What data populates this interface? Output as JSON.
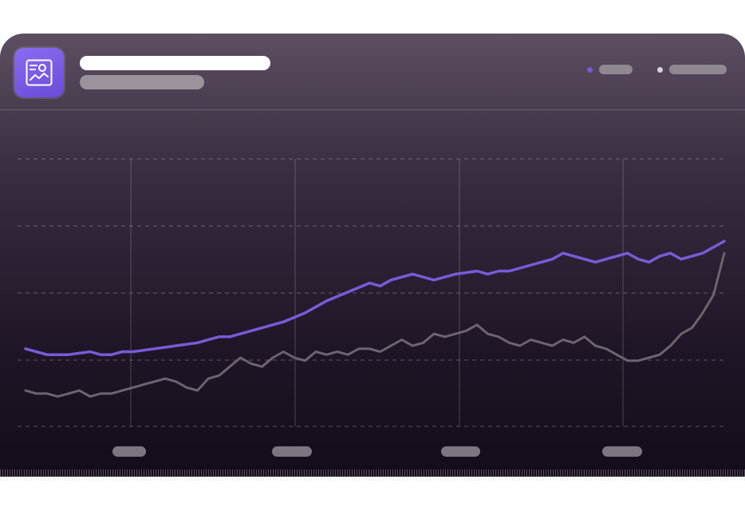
{
  "colors": {
    "series_primary": "#7a5ad8",
    "series_secondary": "#6e6370",
    "accent": "#7a5ad8"
  },
  "icons": {
    "app_icon": "image-chart-icon"
  },
  "chart_data": {
    "type": "line",
    "title": "",
    "xlabel": "",
    "ylabel": "",
    "grid": true,
    "legend_position": "top-right",
    "ylim": [
      0,
      100
    ],
    "xlim": [
      0,
      130
    ],
    "series": [
      {
        "values": [
          [
            0,
            26
          ],
          [
            2,
            25
          ],
          [
            4,
            24
          ],
          [
            8,
            24
          ],
          [
            12,
            25
          ],
          [
            14,
            24
          ],
          [
            16,
            24
          ],
          [
            18,
            25
          ],
          [
            20,
            25
          ],
          [
            24,
            26
          ],
          [
            28,
            27
          ],
          [
            32,
            28
          ],
          [
            34,
            29
          ],
          [
            36,
            30
          ],
          [
            38,
            30
          ],
          [
            40,
            31
          ],
          [
            42,
            32
          ],
          [
            46,
            34
          ],
          [
            48,
            35
          ],
          [
            52,
            38
          ],
          [
            56,
            42
          ],
          [
            60,
            45
          ],
          [
            64,
            48
          ],
          [
            66,
            47
          ],
          [
            68,
            49
          ],
          [
            70,
            50
          ],
          [
            72,
            51
          ],
          [
            74,
            50
          ],
          [
            76,
            49
          ],
          [
            80,
            51
          ],
          [
            84,
            52
          ],
          [
            86,
            51
          ],
          [
            88,
            52
          ],
          [
            90,
            52
          ],
          [
            92,
            53
          ],
          [
            94,
            54
          ],
          [
            96,
            55
          ],
          [
            98,
            56
          ],
          [
            100,
            58
          ],
          [
            102,
            57
          ],
          [
            104,
            56
          ],
          [
            106,
            55
          ],
          [
            108,
            56
          ],
          [
            110,
            57
          ],
          [
            112,
            58
          ],
          [
            114,
            56
          ],
          [
            116,
            55
          ],
          [
            118,
            57
          ],
          [
            120,
            58
          ],
          [
            122,
            56
          ],
          [
            124,
            57
          ],
          [
            126,
            58
          ],
          [
            128,
            60
          ],
          [
            130,
            62
          ]
        ]
      },
      {
        "values": [
          [
            0,
            12
          ],
          [
            2,
            11
          ],
          [
            4,
            11
          ],
          [
            6,
            10
          ],
          [
            8,
            11
          ],
          [
            10,
            12
          ],
          [
            12,
            10
          ],
          [
            14,
            11
          ],
          [
            16,
            11
          ],
          [
            18,
            12
          ],
          [
            20,
            13
          ],
          [
            22,
            14
          ],
          [
            24,
            15
          ],
          [
            26,
            16
          ],
          [
            28,
            15
          ],
          [
            30,
            13
          ],
          [
            32,
            12
          ],
          [
            34,
            16
          ],
          [
            36,
            17
          ],
          [
            38,
            20
          ],
          [
            40,
            23
          ],
          [
            42,
            21
          ],
          [
            44,
            20
          ],
          [
            46,
            23
          ],
          [
            48,
            25
          ],
          [
            50,
            23
          ],
          [
            52,
            22
          ],
          [
            54,
            25
          ],
          [
            56,
            24
          ],
          [
            58,
            25
          ],
          [
            60,
            24
          ],
          [
            62,
            26
          ],
          [
            64,
            26
          ],
          [
            66,
            25
          ],
          [
            68,
            27
          ],
          [
            70,
            29
          ],
          [
            72,
            27
          ],
          [
            74,
            28
          ],
          [
            76,
            31
          ],
          [
            78,
            30
          ],
          [
            80,
            31
          ],
          [
            82,
            32
          ],
          [
            84,
            34
          ],
          [
            86,
            31
          ],
          [
            88,
            30
          ],
          [
            90,
            28
          ],
          [
            92,
            27
          ],
          [
            94,
            29
          ],
          [
            96,
            28
          ],
          [
            98,
            27
          ],
          [
            100,
            29
          ],
          [
            102,
            28
          ],
          [
            104,
            30
          ],
          [
            106,
            27
          ],
          [
            108,
            26
          ],
          [
            110,
            24
          ],
          [
            112,
            22
          ],
          [
            114,
            22
          ],
          [
            116,
            23
          ],
          [
            118,
            24
          ],
          [
            120,
            27
          ],
          [
            122,
            31
          ],
          [
            124,
            33
          ],
          [
            126,
            38
          ],
          [
            128,
            44
          ],
          [
            130,
            58
          ]
        ]
      }
    ]
  }
}
